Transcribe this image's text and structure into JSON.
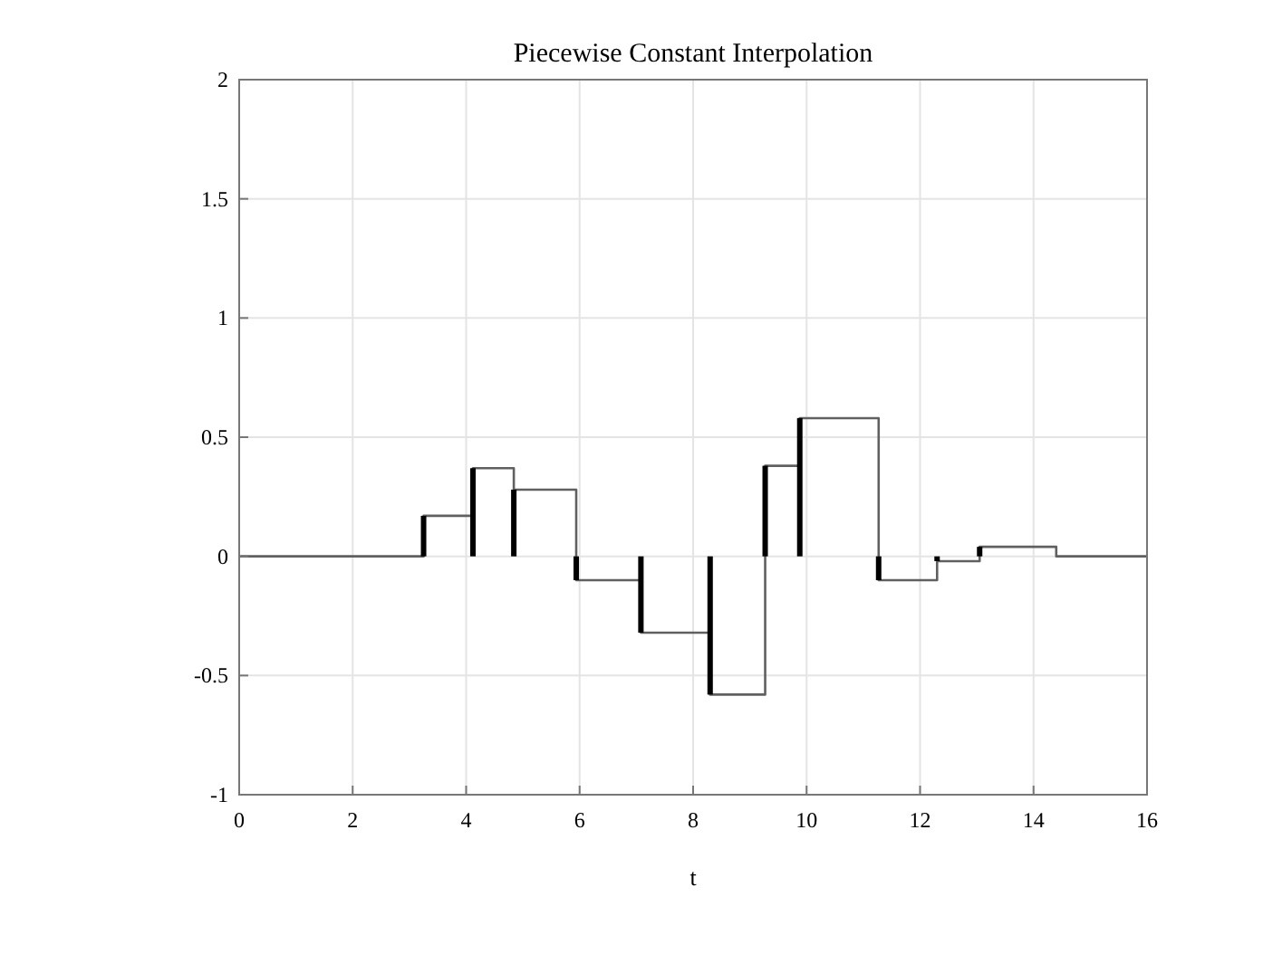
{
  "chart_data": {
    "type": "step",
    "title": "Piecewise Constant Interpolation",
    "xlabel": "t",
    "xlim": [
      0,
      16
    ],
    "xticks": [
      0,
      2,
      4,
      6,
      8,
      10,
      12,
      14,
      16
    ],
    "ylim": [
      -1,
      2
    ],
    "yticks": [
      -1,
      -0.5,
      0,
      0.5,
      1,
      1.5,
      2
    ],
    "grid": true,
    "line_style": "solid",
    "marker": "none",
    "series": [
      {
        "color": "#606060",
        "x": [
          0,
          3.25,
          4.12,
          4.84,
          5.94,
          7.08,
          8.3,
          9.27,
          9.88,
          11.27,
          12.3,
          13.05,
          14.4,
          16
        ],
        "values": [
          0,
          0.17,
          0.37,
          0.28,
          -0.1,
          -0.32,
          -0.58,
          0.38,
          0.58,
          -0.1,
          -0.02,
          0.04,
          0,
          0
        ]
      },
      {
        "type": "bar",
        "color": "#000000",
        "x": [
          3.25,
          4.12,
          4.84,
          5.94,
          7.08,
          8.3,
          9.27,
          9.88,
          11.27,
          12.3,
          13.05
        ],
        "values": [
          0.17,
          0.37,
          0.28,
          -0.1,
          -0.32,
          -0.58,
          0.38,
          0.58,
          -0.1,
          -0.02,
          0.04
        ]
      }
    ]
  }
}
